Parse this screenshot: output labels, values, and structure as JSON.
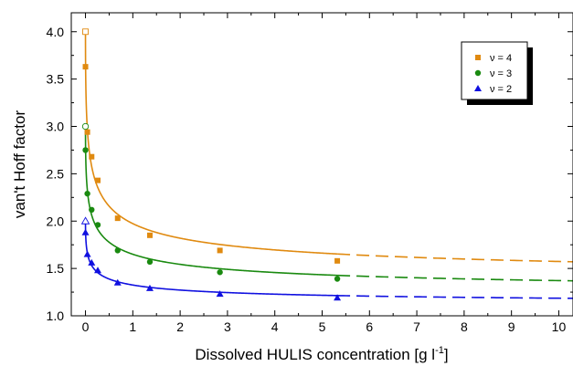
{
  "chart_data": {
    "type": "scatter",
    "title": "",
    "xlabel": "Dissolved HULIS concentration   [g l",
    "xlabel_sup": "-1",
    "xlabel_end": "]",
    "ylabel": "van't Hoff factor",
    "xlim": [
      -0.3,
      10.3
    ],
    "ylim": [
      1.0,
      4.2
    ],
    "x_ticks": [
      0,
      1,
      2,
      3,
      4,
      5,
      6,
      7,
      8,
      9,
      10
    ],
    "x_tick_labels": [
      "0",
      "1",
      "2",
      "3",
      "4",
      "5",
      "6",
      "7",
      "8",
      "9",
      "10"
    ],
    "y_ticks": [
      1.0,
      1.5,
      2.0,
      2.5,
      3.0,
      3.5,
      4.0
    ],
    "y_tick_labels": [
      "1.0",
      "1.5",
      "2.0",
      "2.5",
      "3.0",
      "3.5",
      "4.0"
    ],
    "grid": false,
    "legend_position": "top-right",
    "series": [
      {
        "name": "ν = 4",
        "color": "#e08a10",
        "marker": "square",
        "open_point": {
          "x": 0.0,
          "y": 4.0
        },
        "points": [
          {
            "x": 0.0,
            "y": 3.63
          },
          {
            "x": 0.04,
            "y": 2.94
          },
          {
            "x": 0.13,
            "y": 2.68
          },
          {
            "x": 0.26,
            "y": 2.43
          },
          {
            "x": 0.68,
            "y": 2.03
          },
          {
            "x": 1.36,
            "y": 1.85
          },
          {
            "x": 2.84,
            "y": 1.69
          },
          {
            "x": 5.32,
            "y": 1.58
          }
        ],
        "limit": 1.33
      },
      {
        "name": "ν = 3",
        "color": "#1a8a10",
        "marker": "circle",
        "open_point": {
          "x": 0.0,
          "y": 3.0
        },
        "points": [
          {
            "x": 0.0,
            "y": 2.75
          },
          {
            "x": 0.04,
            "y": 2.29
          },
          {
            "x": 0.13,
            "y": 2.12
          },
          {
            "x": 0.26,
            "y": 1.96
          },
          {
            "x": 0.68,
            "y": 1.69
          },
          {
            "x": 1.36,
            "y": 1.57
          },
          {
            "x": 2.84,
            "y": 1.46
          },
          {
            "x": 5.32,
            "y": 1.39
          }
        ],
        "limit": 1.2
      },
      {
        "name": "ν = 2",
        "color": "#1010e0",
        "marker": "triangle",
        "open_point": {
          "x": 0.0,
          "y": 2.0
        },
        "points": [
          {
            "x": 0.0,
            "y": 1.88
          },
          {
            "x": 0.04,
            "y": 1.65
          },
          {
            "x": 0.13,
            "y": 1.56
          },
          {
            "x": 0.26,
            "y": 1.48
          },
          {
            "x": 0.68,
            "y": 1.35
          },
          {
            "x": 1.36,
            "y": 1.29
          },
          {
            "x": 2.84,
            "y": 1.23
          },
          {
            "x": 5.32,
            "y": 1.19
          }
        ],
        "limit": 1.1
      }
    ]
  }
}
